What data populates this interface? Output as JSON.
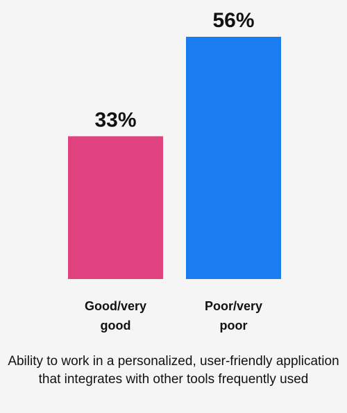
{
  "chart_data": {
    "type": "bar",
    "categories": [
      "Good/very good",
      "Poor/very poor"
    ],
    "category_lines": [
      [
        "Good/very",
        "good"
      ],
      [
        "Poor/very",
        "poor"
      ]
    ],
    "values": [
      33,
      56
    ],
    "value_labels": [
      "33%",
      "56%"
    ],
    "colors": [
      "#e0417f",
      "#1a7cf1"
    ],
    "ylim": [
      0,
      56
    ],
    "grid": false,
    "legend": "none",
    "xlabel": "Ability to work in a personalized, user-friendly application that integrates with other tools frequently used"
  }
}
